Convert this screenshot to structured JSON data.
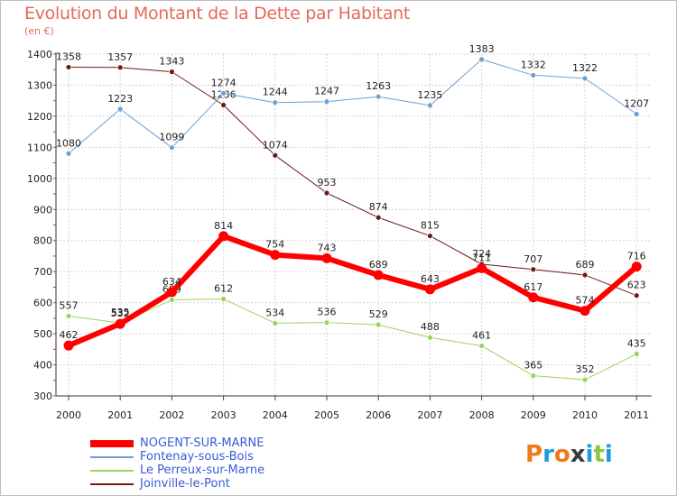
{
  "title": "Evolution du Montant de la Dette par Habitant",
  "subtitle": "(en €)",
  "logo": {
    "text": "Proxiti",
    "letters": [
      "P",
      "r",
      "o",
      "x",
      "i",
      "t",
      "i"
    ],
    "colors": [
      "#f07a1a",
      "#1a9be0",
      "#f07a1a",
      "#3a3a3a",
      "#1a9be0",
      "#8cc63f",
      "#1a9be0"
    ]
  },
  "chart_data": {
    "type": "line",
    "x": [
      "2000",
      "2001",
      "2002",
      "2003",
      "2004",
      "2005",
      "2006",
      "2007",
      "2008",
      "2009",
      "2010",
      "2011"
    ],
    "y_ticks": [
      "300",
      "400",
      "500",
      "600",
      "700",
      "800",
      "900",
      "1000",
      "1100",
      "1200",
      "1300",
      "1400"
    ],
    "ylim": [
      300,
      1400
    ],
    "grid": true,
    "legend_position": "bottom-left",
    "series": [
      {
        "name": "Joinville-le-Pont",
        "color": "#6b1a1a",
        "width": 1,
        "values": [
          1358,
          1357,
          1343,
          1236,
          1074,
          953,
          874,
          815,
          724,
          707,
          689,
          623
        ]
      },
      {
        "name": "Fontenay-sous-Bois",
        "color": "#6aa0d4",
        "width": 1,
        "values": [
          1080,
          1223,
          1099,
          1274,
          1244,
          1247,
          1263,
          1235,
          1383,
          1332,
          1322,
          1207
        ]
      },
      {
        "name": "Le Perreux-sur-Marne",
        "color": "#9bd45a",
        "width": 1,
        "values": [
          557,
          535,
          609,
          612,
          534,
          536,
          529,
          488,
          461,
          365,
          352,
          435
        ]
      },
      {
        "name": "NOGENT-SUR-MARNE",
        "color": "#ff0000",
        "width": 6,
        "values": [
          462,
          532,
          634,
          814,
          754,
          743,
          689,
          643,
          711,
          617,
          574,
          716
        ]
      }
    ]
  },
  "legend": [
    {
      "name": "NOGENT-SUR-MARNE",
      "color": "#ff0000",
      "width": 8
    },
    {
      "name": "Fontenay-sous-Bois",
      "color": "#6aa0d4",
      "width": 2
    },
    {
      "name": "Le Perreux-sur-Marne",
      "color": "#9bd45a",
      "width": 2
    },
    {
      "name": "Joinville-le-Pont",
      "color": "#6b1a1a",
      "width": 2
    }
  ]
}
